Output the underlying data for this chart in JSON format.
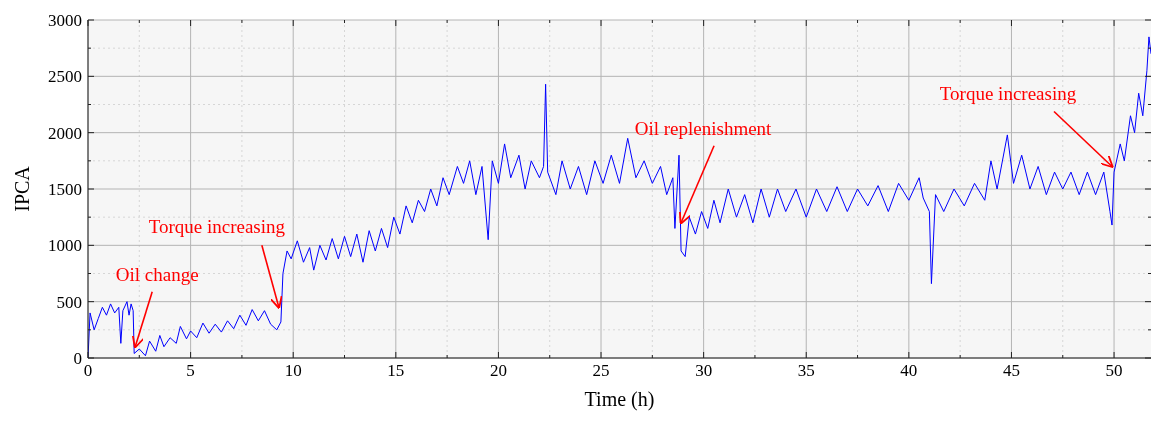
{
  "chart_data": {
    "type": "line",
    "xlabel": "Time (h)",
    "ylabel": "IPCA",
    "x": [
      0,
      0.1,
      0.3,
      0.5,
      0.7,
      0.9,
      1.1,
      1.3,
      1.5,
      1.6,
      1.7,
      1.9,
      2.0,
      2.1,
      2.2,
      2.25,
      2.5,
      2.8,
      3.0,
      3.3,
      3.5,
      3.7,
      4.0,
      4.3,
      4.5,
      4.8,
      5.0,
      5.3,
      5.6,
      5.9,
      6.2,
      6.5,
      6.8,
      7.1,
      7.4,
      7.7,
      8.0,
      8.3,
      8.6,
      8.9,
      9.2,
      9.4,
      9.5,
      9.7,
      9.9,
      10.2,
      10.5,
      10.8,
      11.0,
      11.3,
      11.6,
      11.9,
      12.2,
      12.5,
      12.8,
      13.1,
      13.4,
      13.7,
      14.0,
      14.3,
      14.6,
      14.9,
      15.2,
      15.5,
      15.8,
      16.1,
      16.4,
      16.7,
      17.0,
      17.3,
      17.6,
      18.0,
      18.3,
      18.6,
      18.9,
      19.2,
      19.5,
      19.7,
      20.0,
      20.3,
      20.6,
      21.0,
      21.3,
      21.6,
      22.0,
      22.2,
      22.3,
      22.4,
      22.8,
      23.1,
      23.5,
      23.9,
      24.3,
      24.7,
      25.1,
      25.5,
      25.9,
      26.3,
      26.7,
      27.1,
      27.5,
      27.9,
      28.2,
      28.5,
      28.6,
      28.8,
      28.9,
      29.1,
      29.3,
      29.6,
      29.9,
      30.2,
      30.5,
      30.8,
      31.2,
      31.6,
      32.0,
      32.4,
      32.8,
      33.2,
      33.6,
      34.0,
      34.5,
      35.0,
      35.5,
      36.0,
      36.5,
      37.0,
      37.5,
      38.0,
      38.5,
      39.0,
      39.5,
      40.0,
      40.5,
      40.7,
      41.0,
      41.1,
      41.3,
      41.7,
      42.2,
      42.7,
      43.2,
      43.7,
      44.0,
      44.3,
      44.8,
      45.1,
      45.5,
      45.9,
      46.3,
      46.7,
      47.1,
      47.5,
      47.9,
      48.3,
      48.7,
      49.1,
      49.5,
      49.8,
      49.9,
      50.0,
      50.3,
      50.5,
      50.8,
      51.0,
      51.2,
      51.4,
      51.6,
      51.7,
      51.8
    ],
    "series": [
      {
        "color": "#0000ff",
        "values": [
          0,
          400,
          250,
          350,
          450,
          380,
          480,
          400,
          450,
          130,
          420,
          500,
          380,
          480,
          420,
          40,
          80,
          20,
          150,
          60,
          200,
          100,
          180,
          130,
          280,
          170,
          240,
          180,
          310,
          220,
          300,
          230,
          330,
          260,
          380,
          290,
          430,
          330,
          420,
          300,
          250,
          320,
          750,
          950,
          880,
          1040,
          850,
          980,
          780,
          1000,
          870,
          1060,
          880,
          1080,
          900,
          1100,
          850,
          1130,
          950,
          1150,
          980,
          1250,
          1100,
          1350,
          1200,
          1400,
          1300,
          1500,
          1350,
          1600,
          1450,
          1700,
          1550,
          1750,
          1450,
          1700,
          1050,
          1750,
          1550,
          1900,
          1600,
          1800,
          1500,
          1750,
          1600,
          1700,
          2430,
          1650,
          1450,
          1750,
          1500,
          1700,
          1450,
          1750,
          1550,
          1800,
          1550,
          1950,
          1600,
          1750,
          1550,
          1700,
          1450,
          1600,
          1150,
          1800,
          950,
          900,
          1250,
          1100,
          1300,
          1150,
          1400,
          1200,
          1500,
          1250,
          1450,
          1200,
          1500,
          1250,
          1500,
          1300,
          1500,
          1250,
          1500,
          1300,
          1520,
          1300,
          1500,
          1350,
          1530,
          1300,
          1550,
          1400,
          1600,
          1420,
          1300,
          660,
          1450,
          1300,
          1500,
          1350,
          1550,
          1400,
          1750,
          1500,
          1980,
          1550,
          1800,
          1500,
          1700,
          1450,
          1650,
          1500,
          1650,
          1450,
          1650,
          1450,
          1650,
          1300,
          1180,
          1650,
          1900,
          1750,
          2150,
          2000,
          2350,
          2150,
          2550,
          2850,
          2700
        ]
      }
    ],
    "xlim": [
      0,
      51.8
    ],
    "xticks": [
      0,
      {
        "value": 2.5,
        "label": null
      },
      5,
      {
        "value": 7.5,
        "label": null
      },
      10,
      {
        "value": 12.5,
        "label": null
      },
      15,
      {
        "value": 17.5,
        "label": null
      },
      20,
      {
        "value": 22.5,
        "label": null
      },
      25,
      {
        "value": 27.5,
        "label": null
      },
      30,
      {
        "value": 32.5,
        "label": null
      },
      35,
      {
        "value": 37.5,
        "label": null
      },
      40,
      {
        "value": 42.5,
        "label": null
      },
      45,
      {
        "value": 47.5,
        "label": null
      },
      50
    ],
    "ylim": [
      0,
      3000
    ],
    "yticks": [
      0,
      {
        "value": 250,
        "label": null
      },
      500,
      {
        "value": 750,
        "label": null
      },
      1000,
      {
        "value": 1250,
        "label": null
      },
      1500,
      {
        "value": 1750,
        "label": null
      },
      2000,
      {
        "value": 2250,
        "label": null
      },
      2500,
      {
        "value": 2750,
        "label": null
      },
      3000
    ],
    "grid": true,
    "marker": "none",
    "line_style": "solid",
    "legend": false,
    "annotations": [
      {
        "text": "Oil change",
        "x": 2.3,
        "y": 100
      },
      {
        "text": "Torque increasing",
        "x": 9.3,
        "y": 450
      },
      {
        "text": "Oil replenishment",
        "x": 28.9,
        "y": 1200
      },
      {
        "text": "Torque increasing",
        "x": 49.9,
        "y": 1700
      }
    ]
  }
}
